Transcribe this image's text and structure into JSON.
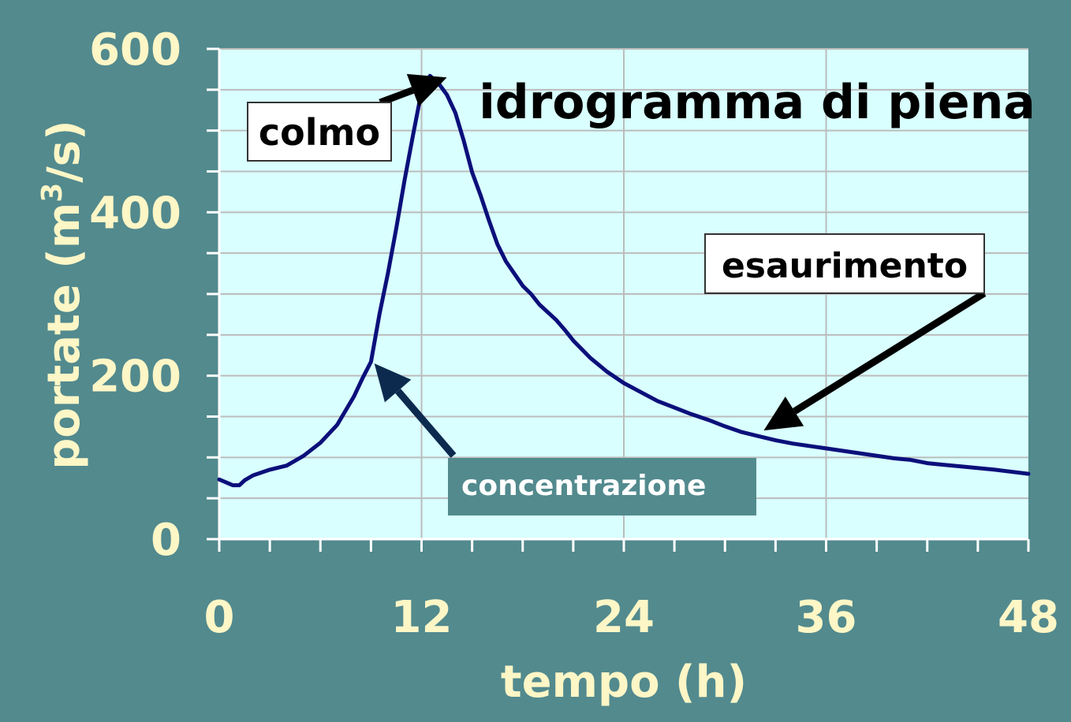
{
  "colors": {
    "background": "#528a8e",
    "plot_background": "#d9ffff",
    "gridline": "#bcbcbc",
    "series_line": "#0b0f7a",
    "axis_text": "#fdf6c6",
    "annotation_box_white": "#ffffff",
    "annotation_box_teal": "#528a8e",
    "arrow": "#000000",
    "arrow_navy": "#0b2a4e"
  },
  "chart_data": {
    "type": "line",
    "title": "idrogramma di piena",
    "xlabel": "tempo (h)",
    "ylabel": "portate (m³/s)",
    "ylabel_parts": {
      "prefix": "portate (m",
      "superscript": "3",
      "suffix": "/s)"
    },
    "xlim": [
      0,
      48
    ],
    "ylim": [
      0,
      600
    ],
    "x_ticks": [
      0,
      12,
      24,
      36,
      48
    ],
    "x_tick_labels": [
      "0",
      "12",
      "24",
      "36",
      "48"
    ],
    "x_minor_step": 3,
    "y_ticks": [
      0,
      200,
      400,
      600
    ],
    "y_tick_labels": [
      "0",
      "200",
      "400",
      "600"
    ],
    "y_minor_step": 50,
    "grid": true,
    "series": [
      {
        "x": [
          0,
          0.8,
          1.2,
          1.5,
          2,
          3,
          4,
          5,
          6,
          7,
          8,
          8.5,
          9,
          9.5,
          10,
          10.5,
          11,
          11.5,
          12,
          12.5,
          13,
          13.5,
          14,
          14.5,
          15,
          15.5,
          16,
          16.5,
          17,
          17.5,
          18,
          18.5,
          19,
          20,
          20.5,
          21,
          22,
          23,
          24,
          25,
          26,
          27,
          28,
          29,
          30,
          31,
          32,
          33,
          34,
          35,
          36,
          38,
          40,
          41,
          42,
          43,
          44,
          46,
          48
        ],
        "y": [
          73,
          66,
          66,
          72,
          78,
          85,
          90,
          102,
          118,
          140,
          175,
          197,
          217,
          275,
          325,
          380,
          440,
          495,
          548,
          567,
          558,
          544,
          522,
          488,
          449,
          421,
          390,
          361,
          340,
          325,
          310,
          300,
          287,
          268,
          256,
          243,
          222,
          205,
          191,
          180,
          169,
          161,
          153,
          146,
          138,
          131,
          126,
          121,
          117,
          114,
          111,
          105,
          99,
          97,
          93,
          91,
          89,
          85,
          80
        ]
      }
    ],
    "annotations": [
      {
        "text": "colmo",
        "target": [
          13.5,
          565
        ],
        "style": "white-box"
      },
      {
        "text": "esaurimento",
        "target": [
          32.3,
          133
        ],
        "style": "white-box"
      },
      {
        "text": "concentrazione",
        "target": [
          9.2,
          215
        ],
        "style": "teal-box"
      }
    ]
  }
}
